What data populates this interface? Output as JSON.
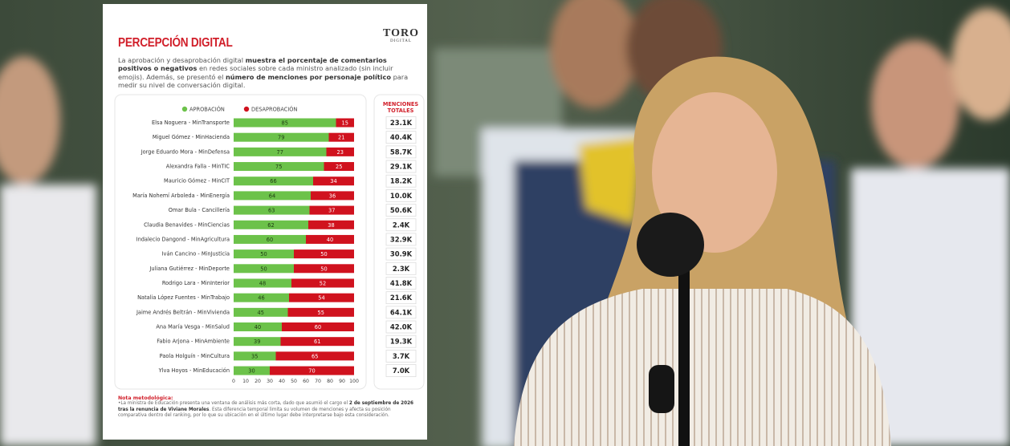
{
  "chart_data": {
    "type": "bar",
    "orientation": "horizontal",
    "stacked": true,
    "title": "PERCEPCIÓN DIGITAL",
    "logo": [
      "TORO",
      "DIGITAL"
    ],
    "description": [
      {
        "text": "La aprobación y desaprobación digital ",
        "bold": false
      },
      {
        "text": "muestra el porcentaje de comentarios positivos o negativos",
        "bold": true
      },
      {
        "text": " en redes sociales sobre cada ministro analizado (sin incluir emojis). Además, se presentó el ",
        "bold": false
      },
      {
        "text": "número de menciones por personaje político",
        "bold": true
      },
      {
        "text": " para medir su nivel de conversación digital.",
        "bold": false
      }
    ],
    "categories": [
      "Elsa Noguera - MinTransporte",
      "Miguel Gómez - MinHacienda",
      "Jorge Eduardo Mora - MinDefensa",
      "Alexandra Falla - MinTIC",
      "Mauricio Gómez - MinCIT",
      "María Nohemí Arboleda - MinEnergía",
      "Omar Bula - Cancillería",
      "Claudia Benavides - MinCiencias",
      "Indalecio Dangond - MinAgricultura",
      "Iván Cancino - MinJusticia",
      "Juliana Gutiérrez - MinDeporte",
      "Rodrigo Lara - MinInterior",
      "Natalia López Fuentes - MinTrabajo",
      "Jaime Andrés Beltrán - MinVivienda",
      "Ana María Vesga - MinSalud",
      "Fabio Arjona - MinAmbiente",
      "Paola Holguín - MinCultura",
      "Ylva Hoyos - MinEducación"
    ],
    "series": [
      {
        "name": "APROBACIÓN",
        "color": "#6cc24a",
        "values": [
          85,
          79,
          77,
          75,
          66,
          64,
          63,
          62,
          60,
          50,
          50,
          48,
          46,
          45,
          40,
          39,
          35,
          30
        ]
      },
      {
        "name": "DESAPROBACIÓN",
        "color": "#d0121e",
        "values": [
          15,
          21,
          23,
          25,
          34,
          36,
          37,
          38,
          40,
          50,
          50,
          52,
          54,
          55,
          60,
          61,
          65,
          70
        ]
      }
    ],
    "xlim": [
      0,
      100
    ],
    "xticks": [
      0,
      10,
      20,
      30,
      40,
      50,
      60,
      70,
      80,
      90,
      100
    ],
    "grid": false
  },
  "mentions": {
    "header": [
      "MENCIONES",
      "TOTALES"
    ],
    "values": [
      23100,
      40400,
      58700,
      29100,
      18200,
      10000,
      50600,
      2400,
      32900,
      30900,
      2300,
      41800,
      21600,
      64100,
      42000,
      19300,
      3700,
      7000
    ],
    "value_labels": [
      "23.1K",
      "40.4K",
      "58.7K",
      "29.1K",
      "18.2K",
      "10.0K",
      "50.6K",
      "2.4K",
      "32.9K",
      "30.9K",
      "2.3K",
      "41.8K",
      "21.6K",
      "64.1K",
      "42.0K",
      "19.3K",
      "3.7K",
      "7.0K"
    ]
  },
  "note": {
    "title": "Nota metodológica:",
    "parts": [
      {
        "text": "•La ministra de Educación presenta una ventana de análisis más corta, dado que asumió el cargo el ",
        "bold": false
      },
      {
        "text": "2 de septiembre de 2026 tras la renuncia de Viviane Morales",
        "bold": true
      },
      {
        "text": ". Esta diferencia temporal limita su volumen de menciones y afecta su posición comparativa dentro del ranking, por lo que su ubicación en el último lugar debe interpretarse bajo esta consideración.",
        "bold": false
      }
    ]
  }
}
